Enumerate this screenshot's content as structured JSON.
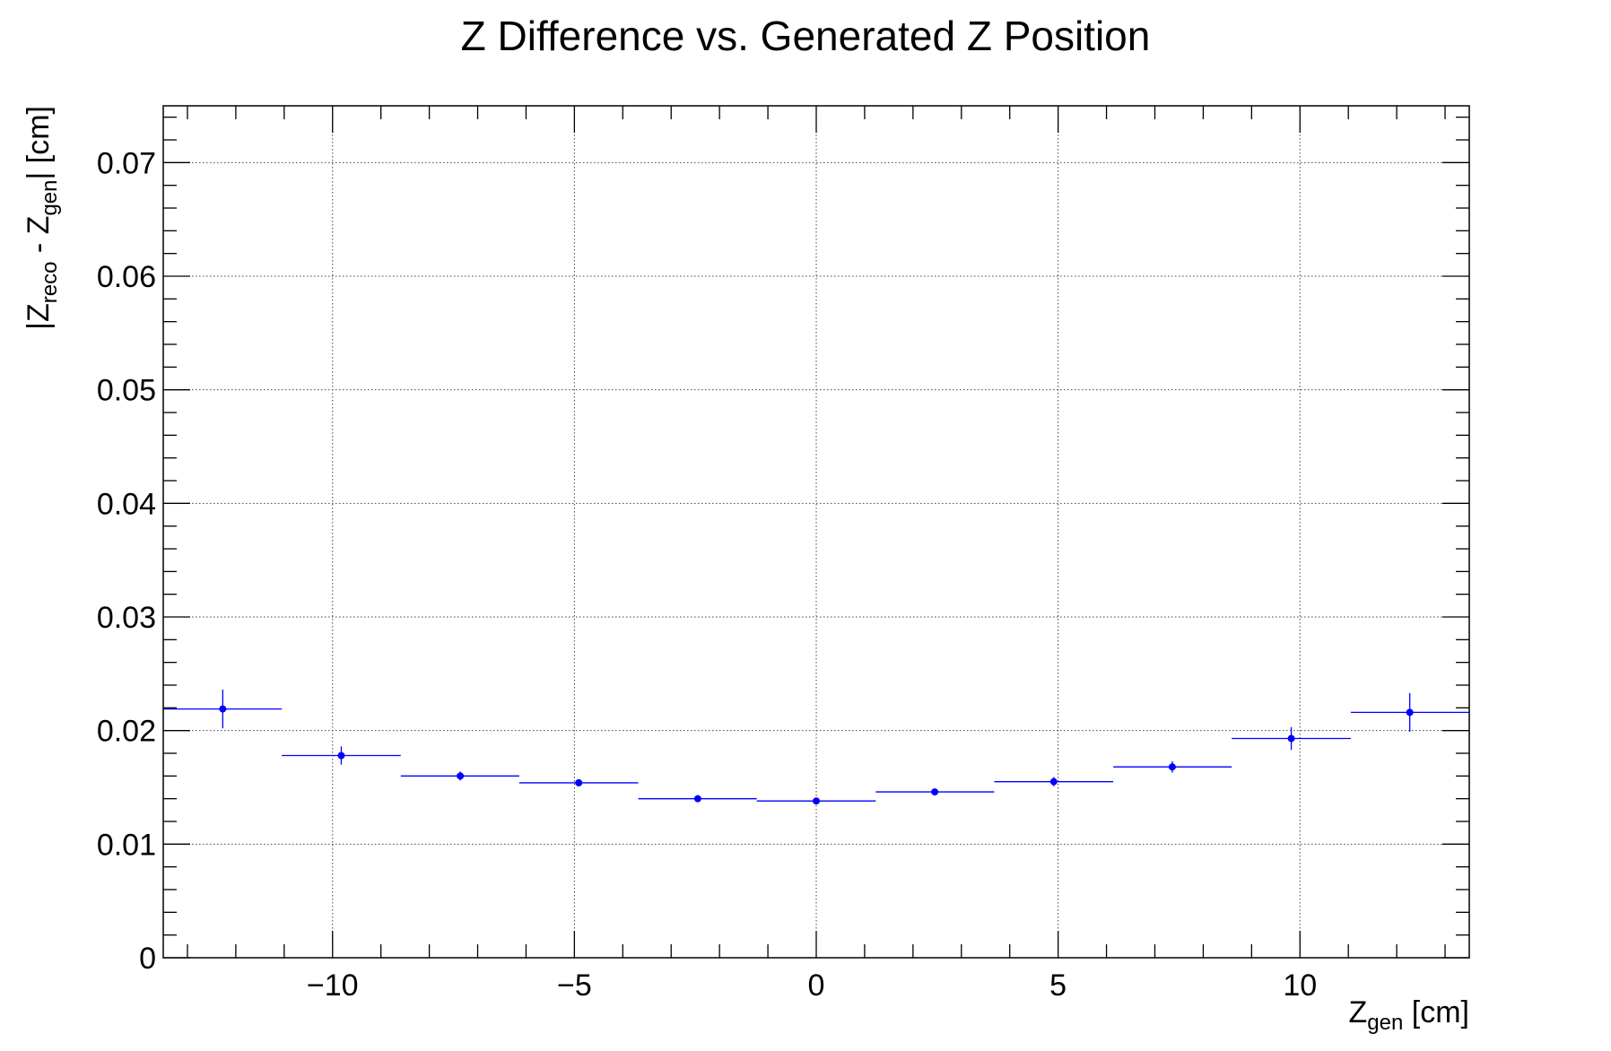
{
  "chart_data": {
    "type": "scatter",
    "title": "Z Difference vs. Generated Z Position",
    "xlabel": {
      "base": "Z",
      "sub": "gen",
      "unit": " [cm]"
    },
    "ylabel": {
      "p1": "|Z",
      "sub1": "reco",
      "p2": " - Z",
      "sub2": "gen",
      "p3": "| [cm]"
    },
    "xlim": [
      -13.5,
      13.5
    ],
    "ylim": [
      0,
      0.075
    ],
    "grid": true,
    "marker_color": "#0000ff",
    "xticks": [
      {
        "value": -10,
        "label": "−10"
      },
      {
        "value": -5,
        "label": "−5"
      },
      {
        "value": 0,
        "label": "0"
      },
      {
        "value": 5,
        "label": "5"
      },
      {
        "value": 10,
        "label": "10"
      }
    ],
    "yticks": [
      {
        "value": 0,
        "label": "0"
      },
      {
        "value": 0.01,
        "label": "0.01"
      },
      {
        "value": 0.02,
        "label": "0.02"
      },
      {
        "value": 0.03,
        "label": "0.03"
      },
      {
        "value": 0.04,
        "label": "0.04"
      },
      {
        "value": 0.05,
        "label": "0.05"
      },
      {
        "value": 0.06,
        "label": "0.06"
      },
      {
        "value": 0.07,
        "label": "0.07"
      }
    ],
    "points": [
      {
        "x": -12.27,
        "xlo": -13.5,
        "xhi": -11.05,
        "y": 0.0219,
        "yerr": 0.0017
      },
      {
        "x": -9.82,
        "xlo": -11.05,
        "xhi": -8.59,
        "y": 0.0178,
        "yerr": 0.0008
      },
      {
        "x": -7.36,
        "xlo": -8.59,
        "xhi": -6.14,
        "y": 0.016,
        "yerr": 0.0004
      },
      {
        "x": -4.91,
        "xlo": -6.14,
        "xhi": -3.68,
        "y": 0.0154,
        "yerr": 0.0003
      },
      {
        "x": -2.45,
        "xlo": -3.68,
        "xhi": -1.23,
        "y": 0.014,
        "yerr": 0.0002
      },
      {
        "x": 0.0,
        "xlo": -1.23,
        "xhi": 1.23,
        "y": 0.0138,
        "yerr": 0.0002
      },
      {
        "x": 2.45,
        "xlo": 1.23,
        "xhi": 3.68,
        "y": 0.0146,
        "yerr": 0.0002
      },
      {
        "x": 4.91,
        "xlo": 3.68,
        "xhi": 6.14,
        "y": 0.0155,
        "yerr": 0.0004
      },
      {
        "x": 7.36,
        "xlo": 6.14,
        "xhi": 8.59,
        "y": 0.0168,
        "yerr": 0.0005
      },
      {
        "x": 9.82,
        "xlo": 8.59,
        "xhi": 11.05,
        "y": 0.0193,
        "yerr": 0.001
      },
      {
        "x": 12.27,
        "xlo": 11.05,
        "xhi": 13.5,
        "y": 0.0216,
        "yerr": 0.0017
      }
    ]
  }
}
